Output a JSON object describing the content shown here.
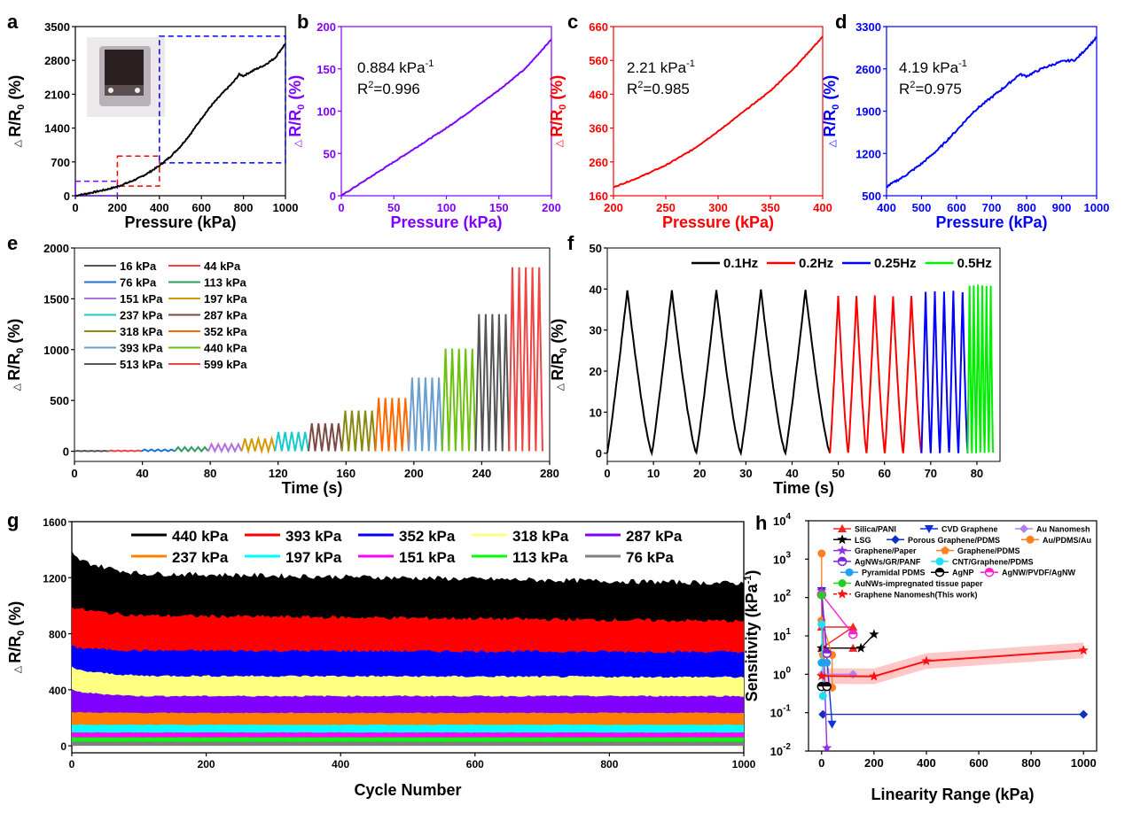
{
  "chart_data": [
    {
      "panel": "a",
      "type": "line",
      "xlabel": "Pressure (kPa)",
      "ylabel": "△R/R0 (%)",
      "xlim": [
        0,
        1000
      ],
      "ylim": [
        0,
        3500
      ],
      "xticks": [
        0,
        200,
        400,
        600,
        800,
        1000
      ],
      "yticks": [
        0,
        700,
        1400,
        2100,
        2800,
        3500
      ],
      "color": "#000000",
      "x": [
        0,
        50,
        100,
        150,
        200,
        250,
        300,
        350,
        400,
        450,
        500,
        550,
        600,
        650,
        700,
        750,
        780,
        800,
        850,
        900,
        950,
        1000
      ],
      "y": [
        0,
        40,
        85,
        130,
        190,
        270,
        360,
        480,
        620,
        800,
        1020,
        1290,
        1600,
        1880,
        2120,
        2340,
        2510,
        2480,
        2600,
        2700,
        2850,
        3150
      ],
      "inset": "device photo",
      "zoom_boxes": [
        {
          "color": "#8000ff",
          "x": [
            0,
            200
          ],
          "y": [
            0,
            300
          ]
        },
        {
          "color": "#ff0000",
          "x": [
            200,
            400
          ],
          "y": [
            200,
            820
          ]
        },
        {
          "color": "#0000ff",
          "x": [
            400,
            1000
          ],
          "y": [
            680,
            3300
          ]
        }
      ]
    },
    {
      "panel": "b",
      "type": "line",
      "xlabel": "Pressure (kPa)",
      "ylabel": "△R/R0 (%)",
      "xlim": [
        0,
        200
      ],
      "ylim": [
        0,
        200
      ],
      "xticks": [
        0,
        50,
        100,
        150,
        200
      ],
      "yticks": [
        0,
        50,
        100,
        150,
        200
      ],
      "color": "#8000ff",
      "x": [
        0,
        25,
        50,
        75,
        100,
        125,
        150,
        175,
        200
      ],
      "y": [
        0,
        20,
        40,
        60,
        80,
        102,
        125,
        150,
        185
      ],
      "annotation": [
        "0.884 kPa-1",
        "R2=0.996"
      ]
    },
    {
      "panel": "c",
      "type": "line",
      "xlabel": "Pressure (kPa)",
      "ylabel": "△R/R0 (%)",
      "xlim": [
        200,
        400
      ],
      "ylim": [
        160,
        660
      ],
      "xticks": [
        200,
        250,
        300,
        350,
        400
      ],
      "yticks": [
        160,
        260,
        360,
        460,
        560,
        660
      ],
      "color": "#ff0000",
      "x": [
        200,
        225,
        250,
        275,
        300,
        325,
        350,
        375,
        400
      ],
      "y": [
        185,
        215,
        250,
        295,
        350,
        410,
        470,
        545,
        630
      ],
      "annotation": [
        "2.21 kPa-1",
        "R2=0.985"
      ]
    },
    {
      "panel": "d",
      "type": "line",
      "xlabel": "Pressure (kPa)",
      "ylabel": "△R/R0 (%)",
      "xlim": [
        400,
        1000
      ],
      "ylim": [
        500,
        3300
      ],
      "xticks": [
        400,
        500,
        600,
        700,
        800,
        900,
        1000
      ],
      "yticks": [
        500,
        1200,
        1900,
        2600,
        3300
      ],
      "color": "#0000ff",
      "x": [
        400,
        450,
        500,
        550,
        600,
        650,
        700,
        750,
        780,
        800,
        850,
        900,
        940,
        1000
      ],
      "y": [
        650,
        820,
        1030,
        1280,
        1580,
        1900,
        2130,
        2360,
        2510,
        2480,
        2620,
        2720,
        2750,
        3120
      ],
      "annotation": [
        "4.19 kPa-1",
        "R2=0.975"
      ]
    },
    {
      "panel": "e",
      "type": "line",
      "xlabel": "Time (s)",
      "ylabel": "△R/R0 (%)",
      "xlim": [
        0,
        280
      ],
      "ylim": [
        -100,
        2000
      ],
      "xticks": [
        0,
        40,
        80,
        120,
        160,
        200,
        240,
        280
      ],
      "yticks": [
        0,
        500,
        1000,
        1500,
        2000
      ],
      "cycles_per_series": 5,
      "series_duration_s": 19.7,
      "series": [
        {
          "name": "16 kPa",
          "color": "#555555",
          "peak": 5
        },
        {
          "name": "44 kPa",
          "color": "#ee4444",
          "peak": 8
        },
        {
          "name": "76 kPa",
          "color": "#1f6fd6",
          "peak": 18
        },
        {
          "name": "113 kPa",
          "color": "#2e9e5e",
          "peak": 40
        },
        {
          "name": "151 kPa",
          "color": "#b070e0",
          "peak": 70
        },
        {
          "name": "197 kPa",
          "color": "#d49a00",
          "peak": 125
        },
        {
          "name": "237 kPa",
          "color": "#19c9d2",
          "peak": 190
        },
        {
          "name": "287 kPa",
          "color": "#7a4a42",
          "peak": 275
        },
        {
          "name": "318 kPa",
          "color": "#8a8a12",
          "peak": 400
        },
        {
          "name": "352 kPa",
          "color": "#ff6a00",
          "peak": 525
        },
        {
          "name": "393 kPa",
          "color": "#6a9fd4",
          "peak": 725
        },
        {
          "name": "440 kPa",
          "color": "#6cc010",
          "peak": 1010
        },
        {
          "name": "513 kPa",
          "color": "#555555",
          "peak": 1350
        },
        {
          "name": "599 kPa",
          "color": "#ee4444",
          "peak": 1810
        }
      ]
    },
    {
      "panel": "f",
      "type": "line",
      "xlabel": "Time (s)",
      "ylabel": "△R/R0 (%)",
      "xlim": [
        0,
        85
      ],
      "ylim": [
        -2,
        50
      ],
      "xticks": [
        0,
        10,
        20,
        30,
        40,
        50,
        60,
        70,
        80
      ],
      "yticks": [
        0,
        10,
        20,
        30,
        40,
        50
      ],
      "series": [
        {
          "name": "0.1Hz",
          "color": "#000000",
          "start": 0,
          "end": 48.2,
          "cycles": 5,
          "peak": 39.8
        },
        {
          "name": "0.2Hz",
          "color": "#ff0000",
          "start": 48.2,
          "end": 68,
          "cycles": 5,
          "peak": 38.3
        },
        {
          "name": "0.25Hz",
          "color": "#0000ff",
          "start": 68,
          "end": 78,
          "cycles": 5,
          "peak": 39.4
        },
        {
          "name": "0.5Hz",
          "color": "#00ee00",
          "start": 78,
          "end": 83.5,
          "cycles": 6,
          "peak": 40.9
        }
      ]
    },
    {
      "panel": "g",
      "type": "area",
      "xlabel": "Cycle Number",
      "ylabel": "△R/R0 (%)",
      "xlim": [
        0,
        1000
      ],
      "ylim": [
        -50,
        1600
      ],
      "xticks": [
        0,
        200,
        400,
        600,
        800,
        1000
      ],
      "yticks": [
        0,
        400,
        800,
        1200,
        1600
      ],
      "series": [
        {
          "name": "440 kPa",
          "color": "#000000",
          "start_peak": 1380,
          "peak_at_100": 1230,
          "end_peak": 1160
        },
        {
          "name": "393 kPa",
          "color": "#ff0000",
          "start_peak": 1000,
          "peak_at_100": 930,
          "end_peak": 890
        },
        {
          "name": "352 kPa",
          "color": "#0000ff",
          "start_peak": 710,
          "peak_at_100": 680,
          "end_peak": 670
        },
        {
          "name": "318 kPa",
          "color": "#ffff80",
          "start_peak": 560,
          "peak_at_100": 500,
          "end_peak": 490
        },
        {
          "name": "287 kPa",
          "color": "#8000ff",
          "start_peak": 400,
          "peak_at_100": 355,
          "end_peak": 355
        },
        {
          "name": "237 kPa",
          "color": "#ff8000",
          "start_peak": 240,
          "peak_at_100": 235,
          "end_peak": 235
        },
        {
          "name": "197 kPa",
          "color": "#00ffff",
          "start_peak": 150,
          "peak_at_100": 150,
          "end_peak": 150
        },
        {
          "name": "151 kPa",
          "color": "#ff00ff",
          "start_peak": 95,
          "peak_at_100": 95,
          "end_peak": 95
        },
        {
          "name": "113 kPa",
          "color": "#00ff00",
          "start_peak": 60,
          "peak_at_100": 60,
          "end_peak": 60
        },
        {
          "name": "76 kPa",
          "color": "#808080",
          "start_peak": 30,
          "peak_at_100": 30,
          "end_peak": 30
        }
      ]
    },
    {
      "panel": "h",
      "type": "scatter",
      "xlabel": "Linearity Range (kPa)",
      "ylabel": "Sensitivity (kPa-1)",
      "xscale": "linear",
      "yscale": "log",
      "xlim": [
        -50,
        1050
      ],
      "ylim": [
        0.01,
        10000
      ],
      "xticks": [
        0,
        200,
        400,
        600,
        800,
        1000
      ],
      "yticks": [
        "10^-2",
        "10^-1",
        "10^0",
        "10^1",
        "10^2",
        "10^3",
        "10^4"
      ],
      "series": [
        {
          "name": "Silica/PANI",
          "color": "#ff2020",
          "marker": "triangle-up",
          "points": [
            [
              0,
              17
            ],
            [
              120,
              17
            ],
            [
              0,
              4.8
            ],
            [
              120,
              4.8
            ]
          ]
        },
        {
          "name": "CVD Graphene",
          "color": "#1030e0",
          "marker": "triangle-down",
          "points": [
            [
              0,
              150
            ],
            [
              40,
              0.05
            ]
          ]
        },
        {
          "name": "Au Nanomesh",
          "color": "#b080e8",
          "marker": "diamond",
          "points": [
            [
              0,
              1
            ],
            [
              120,
              1
            ]
          ]
        },
        {
          "name": "LSG",
          "color": "#000000",
          "marker": "star",
          "points": [
            [
              0,
              4.8
            ],
            [
              150,
              4.8
            ],
            [
              200,
              11
            ]
          ]
        },
        {
          "name": "Porous Graphene/PDMS",
          "color": "#1030c0",
          "marker": "diamond",
          "points": [
            [
              5,
              0.09
            ],
            [
              1000,
              0.09
            ]
          ]
        },
        {
          "name": "Au/PDMS/Au",
          "color": "#ff8020",
          "marker": "circle",
          "points": [
            [
              0,
              1400
            ],
            [
              0,
              25
            ],
            [
              40,
              3.2
            ],
            [
              40,
              0.45
            ]
          ]
        },
        {
          "name": "Graphene/Paper",
          "color": "#9030e0",
          "marker": "star",
          "points": [
            [
              0,
              150
            ],
            [
              20,
              0.012
            ]
          ]
        },
        {
          "name": "Graphene/PDMS",
          "color": "#ff8020",
          "marker": "pentagon",
          "points": [
            [
              0,
              25
            ],
            [
              5,
              3.2
            ]
          ]
        },
        {
          "name": "AgNWs/GR/PANF",
          "color": "#8020e0",
          "marker": "half-circle",
          "points": [
            [
              0,
              120
            ],
            [
              20,
              3.5
            ]
          ]
        },
        {
          "name": "CNT/Graphene/PDMS",
          "color": "#20e0f0",
          "marker": "circle",
          "points": [
            [
              0,
              20
            ],
            [
              5,
              0.27
            ]
          ]
        },
        {
          "name": "Pyramidal PDMS",
          "color": "#20a0f0",
          "marker": "circle",
          "points": [
            [
              0,
              2
            ],
            [
              20,
              2
            ]
          ]
        },
        {
          "name": "AgNP",
          "color": "#000000",
          "marker": "half-circle",
          "points": [
            [
              0,
              0.48
            ],
            [
              20,
              0.48
            ]
          ]
        },
        {
          "name": "AgNW/PVDF/AgNW",
          "color": "#ff20d0",
          "marker": "half-circle",
          "points": [
            [
              0,
              120
            ],
            [
              120,
              11
            ]
          ]
        },
        {
          "name": "AuNWs-impregnated tissue paper",
          "color": "#20d020",
          "marker": "circle",
          "points": [
            [
              0,
              115
            ]
          ]
        },
        {
          "name": "Graphene Nanomesh(This work)",
          "color": "#ff1010",
          "marker": "star",
          "points": [
            [
              0,
              0.9
            ],
            [
              200,
              0.884
            ],
            [
              400,
              2.21
            ],
            [
              1000,
              4.19
            ]
          ],
          "band": true
        }
      ]
    }
  ],
  "panel_labels": [
    "a",
    "b",
    "c",
    "d",
    "e",
    "f",
    "g",
    "h"
  ]
}
